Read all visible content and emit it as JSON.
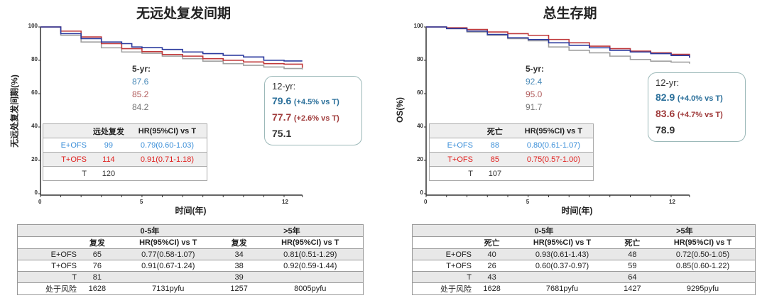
{
  "chart_data": [
    {
      "type": "line",
      "title": "无远处复发间期",
      "ylabel": "无远处复发间期(%)",
      "xlabel": "时间(年)",
      "xlim": [
        0,
        12.9
      ],
      "ylim": [
        0,
        100
      ],
      "xticks": [
        0,
        5,
        12
      ],
      "yticks": [
        0,
        20,
        40,
        60,
        80,
        100
      ],
      "series": [
        {
          "color": "#2b3a9e",
          "values": [
            [
              0,
              100
            ],
            [
              1,
              96
            ],
            [
              2,
              93
            ],
            [
              3,
              91
            ],
            [
              4,
              90
            ],
            [
              4.5,
              88
            ],
            [
              5,
              87.6
            ],
            [
              6,
              86.5
            ],
            [
              7,
              85
            ],
            [
              8,
              84
            ],
            [
              9,
              83
            ],
            [
              10,
              82
            ],
            [
              11,
              80
            ],
            [
              12,
              79.6
            ],
            [
              12.9,
              79.6
            ]
          ]
        },
        {
          "color": "#c0393b",
          "values": [
            [
              0,
              100
            ],
            [
              1,
              97.5
            ],
            [
              2,
              94
            ],
            [
              3,
              90
            ],
            [
              4,
              87
            ],
            [
              5,
              85.2
            ],
            [
              6,
              83.5
            ],
            [
              7,
              82.5
            ],
            [
              8,
              81
            ],
            [
              9,
              80
            ],
            [
              10,
              79
            ],
            [
              11,
              78
            ],
            [
              12,
              77.7
            ],
            [
              12.9,
              75.5
            ]
          ]
        },
        {
          "color": "#a0a0a0",
          "values": [
            [
              0,
              100
            ],
            [
              1,
              95
            ],
            [
              2,
              91
            ],
            [
              3,
              87.5
            ],
            [
              4,
              85
            ],
            [
              5,
              84.2
            ],
            [
              6,
              82.5
            ],
            [
              7,
              81
            ],
            [
              8,
              79.5
            ],
            [
              9,
              78
            ],
            [
              10,
              77
            ],
            [
              11,
              76
            ],
            [
              12,
              75.1
            ],
            [
              12.9,
              74.5
            ]
          ]
        }
      ],
      "five_yr": {
        "label": "5-yr:",
        "values": [
          "87.6",
          "85.2",
          "84.2"
        ]
      },
      "twelve_yr": {
        "label": "12-yr:",
        "rows": [
          {
            "v": "79.6",
            "d": "(+4.5% vs T)"
          },
          {
            "v": "77.7",
            "d": "(+2.6% vs T)"
          },
          {
            "v": "75.1",
            "d": ""
          }
        ]
      },
      "table": {
        "headers": [
          "",
          "远处复发",
          "HR(95%CI) vs T"
        ],
        "rows": [
          [
            "E+OFS",
            "99",
            "0.79(0.60-1.03)"
          ],
          [
            "T+OFS",
            "114",
            "0.91(0.71-1.18)"
          ],
          [
            "T",
            "120",
            ""
          ]
        ]
      }
    },
    {
      "type": "line",
      "title": "总生存期",
      "ylabel": "OS(%)",
      "xlabel": "时间(年)",
      "xlim": [
        0,
        12.9
      ],
      "ylim": [
        0,
        100
      ],
      "xticks": [
        0,
        5,
        12
      ],
      "yticks": [
        0,
        20,
        40,
        60,
        80,
        100
      ],
      "series": [
        {
          "color": "#2b3a9e",
          "values": [
            [
              0,
              100
            ],
            [
              1,
              99
            ],
            [
              2,
              97.5
            ],
            [
              3,
              95.5
            ],
            [
              4,
              93.5
            ],
            [
              5,
              92.4
            ],
            [
              6,
              90.5
            ],
            [
              7,
              89
            ],
            [
              8,
              87.5
            ],
            [
              9,
              86
            ],
            [
              10,
              85
            ],
            [
              11,
              84
            ],
            [
              12,
              82.9
            ],
            [
              12.9,
              81.5
            ]
          ]
        },
        {
          "color": "#c0393b",
          "values": [
            [
              0,
              100
            ],
            [
              1,
              99.5
            ],
            [
              2,
              98.5
            ],
            [
              3,
              97
            ],
            [
              4,
              96
            ],
            [
              5,
              95
            ],
            [
              6,
              92.5
            ],
            [
              7,
              90.5
            ],
            [
              8,
              88.5
            ],
            [
              9,
              87
            ],
            [
              10,
              85.5
            ],
            [
              11,
              84.5
            ],
            [
              12,
              83.6
            ],
            [
              12.9,
              82
            ]
          ]
        },
        {
          "color": "#a0a0a0",
          "values": [
            [
              0,
              100
            ],
            [
              1,
              99
            ],
            [
              2,
              97
            ],
            [
              3,
              95
            ],
            [
              4,
              93
            ],
            [
              5,
              91.7
            ],
            [
              6,
              88
            ],
            [
              7,
              86
            ],
            [
              8,
              84.5
            ],
            [
              9,
              82.5
            ],
            [
              10,
              80.5
            ],
            [
              11,
              79.5
            ],
            [
              12,
              78.9
            ],
            [
              12.9,
              78
            ]
          ]
        }
      ],
      "five_yr": {
        "label": "5-yr:",
        "values": [
          "92.4",
          "95.0",
          "91.7"
        ]
      },
      "twelve_yr": {
        "label": "12-yr:",
        "rows": [
          {
            "v": "82.9",
            "d": "(+4.0% vs T)"
          },
          {
            "v": "83.6",
            "d": "(+4.7% vs T)"
          },
          {
            "v": "78.9",
            "d": ""
          }
        ]
      },
      "table": {
        "headers": [
          "",
          "死亡",
          "HR(95%CI) vs T"
        ],
        "rows": [
          [
            "E+OFS",
            "88",
            "0.80(0.61-1.07)"
          ],
          [
            "T+OFS",
            "85",
            "0.75(0.57-1.00)"
          ],
          [
            "T",
            "107",
            ""
          ]
        ]
      }
    }
  ],
  "bottom_tables": [
    {
      "periods": [
        "0-5年",
        ">5年"
      ],
      "headers": [
        "",
        "复发",
        "HR(95%CI) vs T",
        "复发",
        "HR(95%CI) vs T"
      ],
      "rows": [
        [
          "E+OFS",
          "65",
          "0.77(0.58-1.07)",
          "34",
          "0.81(0.51-1.29)"
        ],
        [
          "T+OFS",
          "76",
          "0.91(0.67-1.24)",
          "38",
          "0.92(0.59-1.44)"
        ],
        [
          "T",
          "81",
          "",
          "39",
          ""
        ],
        [
          "处于风险",
          "1628",
          "7131pyfu",
          "1257",
          "8005pyfu"
        ]
      ]
    },
    {
      "periods": [
        "0-5年",
        ">5年"
      ],
      "headers": [
        "",
        "死亡",
        "HR(95%CI) vs T",
        "死亡",
        "HR(95%CI) vs T"
      ],
      "rows": [
        [
          "E+OFS",
          "40",
          "0.93(0.61-1.43)",
          "48",
          "0.72(0.50-1.05)"
        ],
        [
          "T+OFS",
          "26",
          "0.60(0.37-0.97)",
          "59",
          "0.85(0.60-1.22)"
        ],
        [
          "T",
          "43",
          "",
          "64",
          ""
        ],
        [
          "处于风险",
          "1628",
          "7681pyfu",
          "1427",
          "9295pyfu"
        ]
      ]
    }
  ],
  "colors": {
    "eofs_text": "#3a8ed8",
    "tofs_text": "#e0201e",
    "t_text": "#333333",
    "eofs_12": "#2a6f9a",
    "tofs_12": "#a03c3c",
    "five_blue": "#4a8ab8",
    "five_red": "#b05a5a",
    "five_gray": "#777777"
  }
}
